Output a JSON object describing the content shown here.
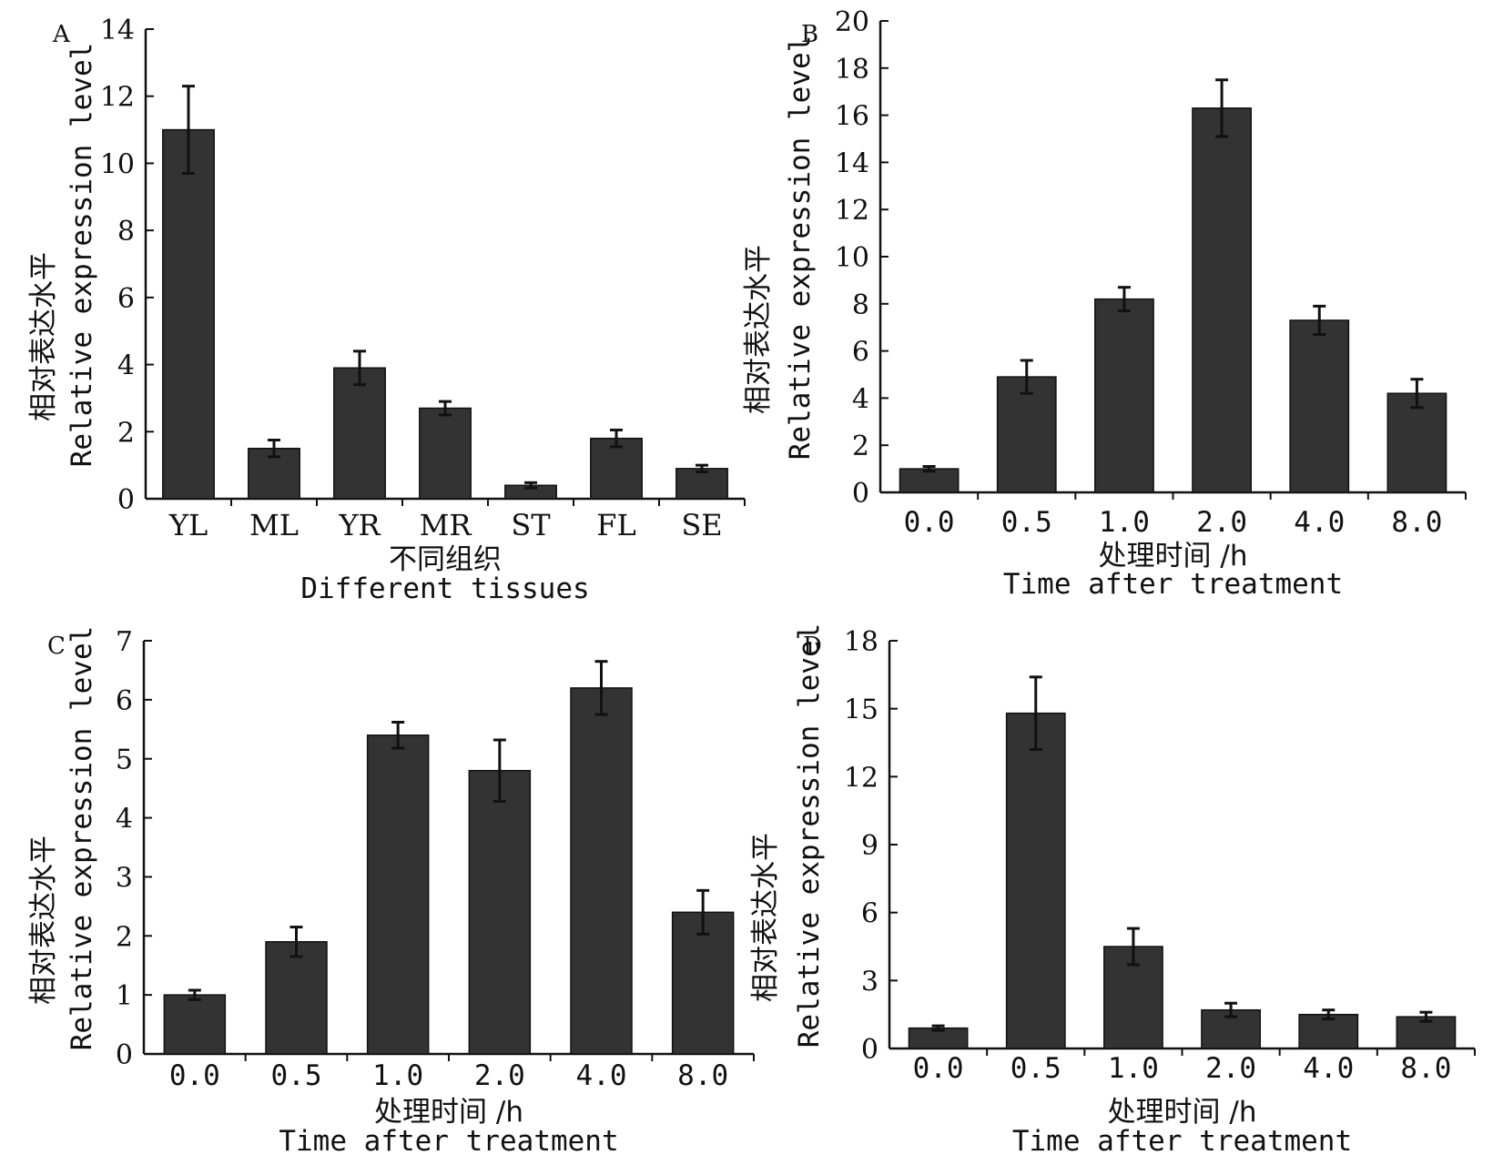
{
  "chart_data": [
    {
      "id": "A",
      "type": "bar",
      "panel_label": "A",
      "categories": [
        "YL",
        "ML",
        "YR",
        "MR",
        "ST",
        "FL",
        "SE"
      ],
      "values": [
        11.0,
        1.5,
        3.9,
        2.7,
        0.4,
        1.8,
        0.9
      ],
      "errors": [
        1.3,
        0.25,
        0.5,
        0.2,
        0.08,
        0.25,
        0.1
      ],
      "ylim": [
        0,
        14
      ],
      "yticks": [
        "0",
        "2",
        "4",
        "6",
        "8",
        "10",
        "12",
        "14"
      ],
      "ylabel_cn": "相对表达水平",
      "ylabel_en": "Relative expression level",
      "xlabel_cn": "不同组织",
      "xlabel_en": "Different tissues",
      "bar_color": "#333333"
    },
    {
      "id": "B",
      "type": "bar",
      "panel_label": "B",
      "categories": [
        "0.0",
        "0.5",
        "1.0",
        "2.0",
        "4.0",
        "8.0"
      ],
      "values": [
        1.0,
        4.9,
        8.2,
        16.3,
        7.3,
        4.2
      ],
      "errors": [
        0.1,
        0.7,
        0.5,
        1.2,
        0.6,
        0.6
      ],
      "ylim": [
        0,
        20
      ],
      "yticks": [
        "0",
        "2",
        "4",
        "6",
        "8",
        "10",
        "12",
        "14",
        "16",
        "18",
        "20"
      ],
      "ylabel_cn": "相对表达水平",
      "ylabel_en": "Relative expression level",
      "xlabel_cn": "处理时间 /h",
      "xlabel_en": "Time after treatment",
      "bar_color": "#333333"
    },
    {
      "id": "C",
      "type": "bar",
      "panel_label": "C",
      "categories": [
        "0.0",
        "0.5",
        "1.0",
        "2.0",
        "4.0",
        "8.0"
      ],
      "values": [
        1.0,
        1.9,
        5.4,
        4.8,
        6.2,
        2.4
      ],
      "errors": [
        0.08,
        0.25,
        0.22,
        0.52,
        0.45,
        0.37
      ],
      "ylim": [
        0,
        7
      ],
      "yticks": [
        "0",
        "1",
        "2",
        "3",
        "4",
        "5",
        "6",
        "7"
      ],
      "ylabel_cn": "相对表达水平",
      "ylabel_en": "Relative expression level",
      "xlabel_cn": "处理时间 /h",
      "xlabel_en": "Time after treatment",
      "bar_color": "#333333"
    },
    {
      "id": "D",
      "type": "bar",
      "panel_label": "D",
      "categories": [
        "0.0",
        "0.5",
        "1.0",
        "2.0",
        "4.0",
        "8.0"
      ],
      "values": [
        0.9,
        14.8,
        4.5,
        1.7,
        1.5,
        1.4
      ],
      "errors": [
        0.1,
        1.6,
        0.8,
        0.3,
        0.2,
        0.2
      ],
      "ylim": [
        0,
        18
      ],
      "yticks": [
        "0",
        "3",
        "6",
        "9",
        "12",
        "15",
        "18"
      ],
      "ylabel_cn": "相对表达水平",
      "ylabel_en": "Relative expression level",
      "xlabel_cn": "处理时间 /h",
      "xlabel_en": "Time after treatment",
      "bar_color": "#333333"
    }
  ]
}
